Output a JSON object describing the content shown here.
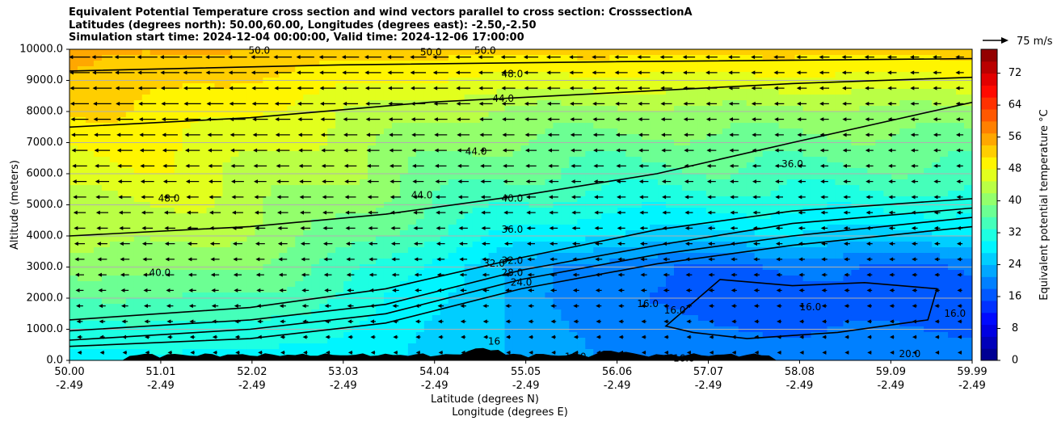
{
  "title_lines": [
    "Equivalent Potential Temperature cross section and wind vectors parallel to cross section: CrosssectionA",
    "Latitudes (degrees north): 50.00,60.00, Longitudes (degrees east): -2.50,-2.50",
    "Simulation start time: 2024-12-04 00:00:00, Valid time: 2024-12-06 17:00:00"
  ],
  "chart_data": {
    "type": "heatmap",
    "ylabel": "Altitude (meters)",
    "xlabel_lines": [
      "Latitude (degrees N)",
      "Longitude (degrees E)"
    ],
    "ylim": [
      0,
      10000
    ],
    "xlim": [
      50.0,
      59.99
    ],
    "y_ticks": [
      "0.0",
      "1000.0",
      "2000.0",
      "3000.0",
      "4000.0",
      "5000.0",
      "6000.0",
      "7000.0",
      "8000.0",
      "9000.0",
      "10000.0"
    ],
    "x_ticks": [
      {
        "lat": "50.00",
        "lon": "-2.49"
      },
      {
        "lat": "51.01",
        "lon": "-2.49"
      },
      {
        "lat": "52.02",
        "lon": "-2.49"
      },
      {
        "lat": "53.03",
        "lon": "-2.49"
      },
      {
        "lat": "54.04",
        "lon": "-2.49"
      },
      {
        "lat": "55.05",
        "lon": "-2.49"
      },
      {
        "lat": "56.06",
        "lon": "-2.49"
      },
      {
        "lat": "57.07",
        "lon": "-2.49"
      },
      {
        "lat": "58.08",
        "lon": "-2.49"
      },
      {
        "lat": "59.09",
        "lon": "-2.49"
      },
      {
        "lat": "59.99",
        "lon": "-2.49"
      }
    ],
    "grid": "horizontal",
    "colorbar": {
      "label": "Equivalent potential temperature °C",
      "range": [
        0,
        78
      ],
      "step": 3,
      "ticks": [
        "0",
        "8",
        "16",
        "24",
        "32",
        "40",
        "48",
        "56",
        "64",
        "72"
      ],
      "tick_values": [
        0,
        8,
        16,
        24,
        32,
        40,
        48,
        56,
        64,
        72
      ]
    },
    "reference_vector": "75 m/s",
    "field_profile": {
      "note_heights_m": [
        0,
        1000,
        2000,
        3000,
        4000,
        5000,
        6000,
        7000,
        8000,
        9000,
        10000
      ],
      "south_lat50": [
        29,
        32,
        36,
        40,
        43,
        45,
        47,
        49,
        51,
        53,
        55
      ],
      "north_lat60": [
        19,
        18,
        17,
        18,
        26,
        31,
        35,
        38,
        41,
        47,
        52
      ]
    },
    "contour_labels": [
      {
        "text": "48.0",
        "lat": 51.1,
        "alt": 5200
      },
      {
        "text": "40.0",
        "lat": 51.0,
        "alt": 2800
      },
      {
        "text": "48.0",
        "lat": 54.9,
        "alt": 9200
      },
      {
        "text": "44.0",
        "lat": 54.8,
        "alt": 8400
      },
      {
        "text": "44.0",
        "lat": 54.5,
        "alt": 6700
      },
      {
        "text": "44.0",
        "lat": 53.9,
        "alt": 5300
      },
      {
        "text": "40.0",
        "lat": 54.9,
        "alt": 5200
      },
      {
        "text": "36.0",
        "lat": 54.9,
        "alt": 4200
      },
      {
        "text": "32.0",
        "lat": 54.7,
        "alt": 3100
      },
      {
        "text": "32.0",
        "lat": 54.9,
        "alt": 3200
      },
      {
        "text": "28.0",
        "lat": 54.9,
        "alt": 2800
      },
      {
        "text": "24.0",
        "lat": 55.0,
        "alt": 2500
      },
      {
        "text": "36.0",
        "lat": 58.0,
        "alt": 6300
      },
      {
        "text": "16.0",
        "lat": 56.4,
        "alt": 1800
      },
      {
        "text": "16.0",
        "lat": 56.7,
        "alt": 1600
      },
      {
        "text": "16.0",
        "lat": 58.2,
        "alt": 1700
      },
      {
        "text": "16.0",
        "lat": 59.8,
        "alt": 1500
      },
      {
        "text": "20.0",
        "lat": 59.3,
        "alt": 200
      },
      {
        "text": "16.0",
        "lat": 56.8,
        "alt": 50
      },
      {
        "text": "16.0",
        "lat": 55.6,
        "alt": 100
      },
      {
        "text": "50.0",
        "lat": 52.1,
        "alt": 9950
      },
      {
        "text": "50.0",
        "lat": 54.0,
        "alt": 9900
      },
      {
        "text": "50.0",
        "lat": 54.6,
        "alt": 9950
      },
      {
        "text": "16",
        "lat": 54.7,
        "alt": 600
      }
    ]
  }
}
